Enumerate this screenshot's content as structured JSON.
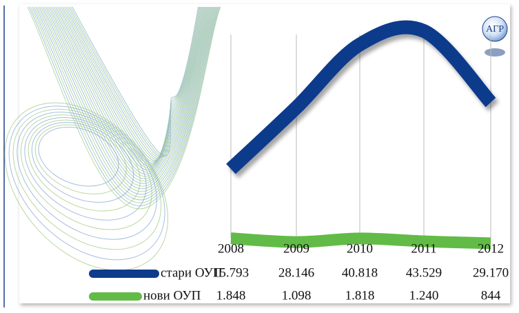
{
  "logo": "АГР",
  "chart_data": {
    "type": "line",
    "categories": [
      "2008",
      "2009",
      "2010",
      "2011",
      "2012"
    ],
    "series": [
      {
        "name": "стари ОУП",
        "color": "#0e3b8c",
        "values": [
          15793,
          28146,
          40818,
          43529,
          29170
        ],
        "value_labels": [
          "15.793",
          "28.146",
          "40.818",
          "43.529",
          "29.170"
        ]
      },
      {
        "name": "нови ОУП",
        "color": "#62bb46",
        "values": [
          1848,
          1098,
          1818,
          1240,
          844
        ],
        "value_labels": [
          "1.848",
          "1.098",
          "1.818",
          "1.240",
          "844"
        ]
      }
    ],
    "grid": true
  }
}
